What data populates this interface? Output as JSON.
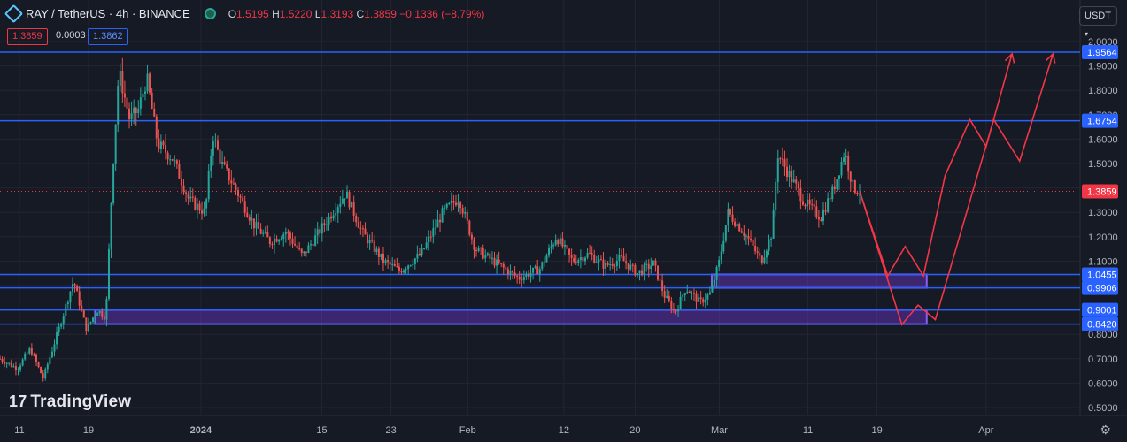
{
  "header": {
    "symbol": "RAY / TetherUS · 4h · BINANCE",
    "open_label": "O",
    "open": "1.5195",
    "high_label": "H",
    "high": "1.5220",
    "low_label": "L",
    "low": "1.3193",
    "close_label": "C",
    "close": "1.3859",
    "change": "−0.1336 (−8.79%)"
  },
  "bid": "1.3859",
  "spread": "0.0003",
  "ask": "1.3862",
  "currency_button": "USDT",
  "logo_text": "TradingView",
  "colors": {
    "background": "#161a25",
    "up": "#26a69a",
    "down": "#ef5350",
    "level_line": "#2962ff",
    "zone": "#7c3aed",
    "projection": "#f23645",
    "axis_text": "#b2b5be"
  },
  "chart_data": {
    "type": "candlestick",
    "pair": "RAY/USDT",
    "interval": "4h",
    "exchange": "BINANCE",
    "y_ticks": [
      "2.0000",
      "1.9000",
      "1.8000",
      "1.7000",
      "1.6000",
      "1.5000",
      "1.4000",
      "1.3000",
      "1.2000",
      "1.1000",
      "1.0000",
      "0.9000",
      "0.8000",
      "0.7000",
      "0.6000",
      "0.5000"
    ],
    "y_range": [
      0.47,
      2.02
    ],
    "x_ticks": [
      "11",
      "19",
      "2024",
      "15",
      "23",
      "Feb",
      "12",
      "20",
      "Mar",
      "11",
      "19",
      "Apr"
    ],
    "current_price": 1.3859,
    "horizontal_levels": [
      {
        "label": "1.9564",
        "value": 1.9564
      },
      {
        "label": "1.6754",
        "value": 1.6754
      },
      {
        "label": "1.0455",
        "value": 1.0455
      },
      {
        "label": "0.9906",
        "value": 0.9906
      },
      {
        "label": "0.9001",
        "value": 0.9001
      },
      {
        "label": "0.8420",
        "value": 0.842
      }
    ],
    "zones": [
      {
        "from_x": 0.659,
        "to_x": 0.858,
        "low": 0.9906,
        "high": 1.0455
      },
      {
        "from_x": 0.088,
        "to_x": 0.858,
        "low": 0.842,
        "high": 0.9001
      }
    ],
    "price_path": [
      {
        "x": 0.0,
        "price": 0.7
      },
      {
        "x": 0.016,
        "price": 0.66
      },
      {
        "x": 0.028,
        "price": 0.74
      },
      {
        "x": 0.04,
        "price": 0.62
      },
      {
        "x": 0.055,
        "price": 0.83
      },
      {
        "x": 0.068,
        "price": 1.02
      },
      {
        "x": 0.08,
        "price": 0.82
      },
      {
        "x": 0.09,
        "price": 0.9
      },
      {
        "x": 0.098,
        "price": 0.87
      },
      {
        "x": 0.104,
        "price": 1.45
      },
      {
        "x": 0.11,
        "price": 1.88
      },
      {
        "x": 0.12,
        "price": 1.68
      },
      {
        "x": 0.128,
        "price": 1.72
      },
      {
        "x": 0.136,
        "price": 1.85
      },
      {
        "x": 0.146,
        "price": 1.58
      },
      {
        "x": 0.16,
        "price": 1.52
      },
      {
        "x": 0.175,
        "price": 1.35
      },
      {
        "x": 0.19,
        "price": 1.3
      },
      {
        "x": 0.197,
        "price": 1.62
      },
      {
        "x": 0.205,
        "price": 1.5
      },
      {
        "x": 0.22,
        "price": 1.38
      },
      {
        "x": 0.235,
        "price": 1.25
      },
      {
        "x": 0.25,
        "price": 1.18
      },
      {
        "x": 0.265,
        "price": 1.22
      },
      {
        "x": 0.28,
        "price": 1.12
      },
      {
        "x": 0.3,
        "price": 1.25
      },
      {
        "x": 0.32,
        "price": 1.38
      },
      {
        "x": 0.335,
        "price": 1.22
      },
      {
        "x": 0.355,
        "price": 1.1
      },
      {
        "x": 0.37,
        "price": 1.06
      },
      {
        "x": 0.39,
        "price": 1.13
      },
      {
        "x": 0.41,
        "price": 1.3
      },
      {
        "x": 0.425,
        "price": 1.36
      },
      {
        "x": 0.44,
        "price": 1.15
      },
      {
        "x": 0.46,
        "price": 1.09
      },
      {
        "x": 0.48,
        "price": 1.03
      },
      {
        "x": 0.5,
        "price": 1.07
      },
      {
        "x": 0.515,
        "price": 1.2
      },
      {
        "x": 0.53,
        "price": 1.1
      },
      {
        "x": 0.545,
        "price": 1.13
      },
      {
        "x": 0.56,
        "price": 1.08
      },
      {
        "x": 0.575,
        "price": 1.11
      },
      {
        "x": 0.59,
        "price": 1.05
      },
      {
        "x": 0.605,
        "price": 1.09
      },
      {
        "x": 0.615,
        "price": 0.96
      },
      {
        "x": 0.625,
        "price": 0.89
      },
      {
        "x": 0.635,
        "price": 0.99
      },
      {
        "x": 0.648,
        "price": 0.93
      },
      {
        "x": 0.658,
        "price": 0.97
      },
      {
        "x": 0.666,
        "price": 1.1
      },
      {
        "x": 0.674,
        "price": 1.3
      },
      {
        "x": 0.69,
        "price": 1.21
      },
      {
        "x": 0.705,
        "price": 1.1
      },
      {
        "x": 0.715,
        "price": 1.22
      },
      {
        "x": 0.72,
        "price": 1.54
      },
      {
        "x": 0.73,
        "price": 1.46
      },
      {
        "x": 0.745,
        "price": 1.34
      },
      {
        "x": 0.76,
        "price": 1.28
      },
      {
        "x": 0.772,
        "price": 1.4
      },
      {
        "x": 0.782,
        "price": 1.55
      },
      {
        "x": 0.79,
        "price": 1.4
      },
      {
        "x": 0.796,
        "price": 1.3859
      }
    ],
    "projection_lines": [
      [
        {
          "x": 0.796,
          "price": 1.3859
        },
        {
          "x": 0.822,
          "price": 1.04
        },
        {
          "x": 0.838,
          "price": 1.16
        },
        {
          "x": 0.855,
          "price": 1.04
        },
        {
          "x": 0.875,
          "price": 1.45
        },
        {
          "x": 0.898,
          "price": 1.68
        },
        {
          "x": 0.913,
          "price": 1.57
        },
        {
          "x": 0.937,
          "price": 1.95
        }
      ],
      [
        {
          "x": 0.796,
          "price": 1.3859
        },
        {
          "x": 0.835,
          "price": 0.84
        },
        {
          "x": 0.85,
          "price": 0.92
        },
        {
          "x": 0.866,
          "price": 0.86
        },
        {
          "x": 0.92,
          "price": 1.68
        },
        {
          "x": 0.944,
          "price": 1.51
        },
        {
          "x": 0.975,
          "price": 1.95
        }
      ]
    ]
  }
}
